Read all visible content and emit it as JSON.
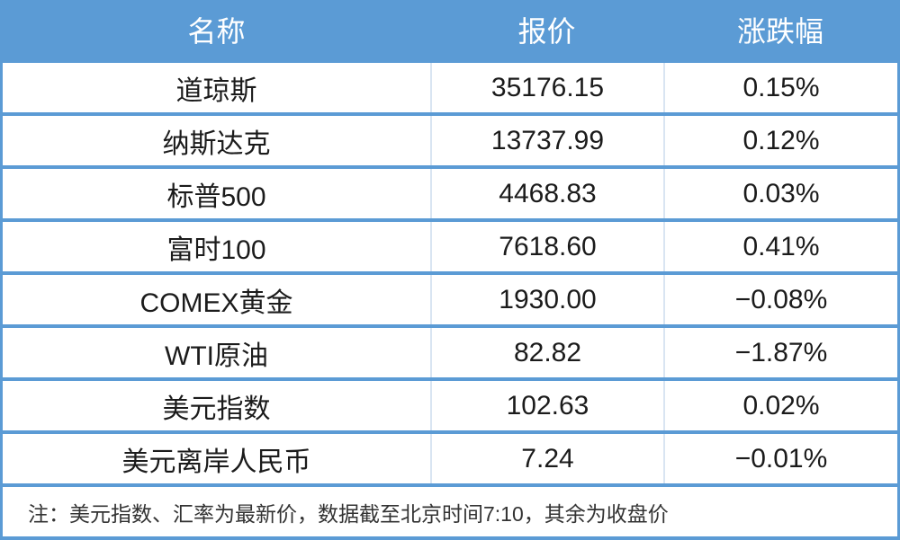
{
  "chart_data": {
    "type": "table",
    "title": "",
    "columns": [
      "名称",
      "报价",
      "涨跌幅"
    ],
    "rows": [
      {
        "name": "道琼斯",
        "quote": "35176.15",
        "change": "0.15%"
      },
      {
        "name": "纳斯达克",
        "quote": "13737.99",
        "change": "0.12%"
      },
      {
        "name": "标普500",
        "quote": "4468.83",
        "change": "0.03%"
      },
      {
        "name": "富时100",
        "quote": "7618.60",
        "change": "0.41%"
      },
      {
        "name": "COMEX黄金",
        "quote": "1930.00",
        "change": "−0.08%"
      },
      {
        "name": "WTI原油",
        "quote": "82.82",
        "change": "−1.87%"
      },
      {
        "name": "美元指数",
        "quote": "102.63",
        "change": "0.02%"
      },
      {
        "name": "美元离岸人民币",
        "quote": "7.24",
        "change": "−0.01%"
      }
    ],
    "note": "注：美元指数、汇率为最新价，数据截至北京时间7:10，其余为收盘价"
  },
  "colors": {
    "accent_blue": "#5B9BD5",
    "divider_light_blue": "#D9E5F2",
    "row_background": "#FFFFFF",
    "header_text": "#FFFFFF",
    "body_text": "#1B1B1B",
    "note_text": "#333333"
  }
}
